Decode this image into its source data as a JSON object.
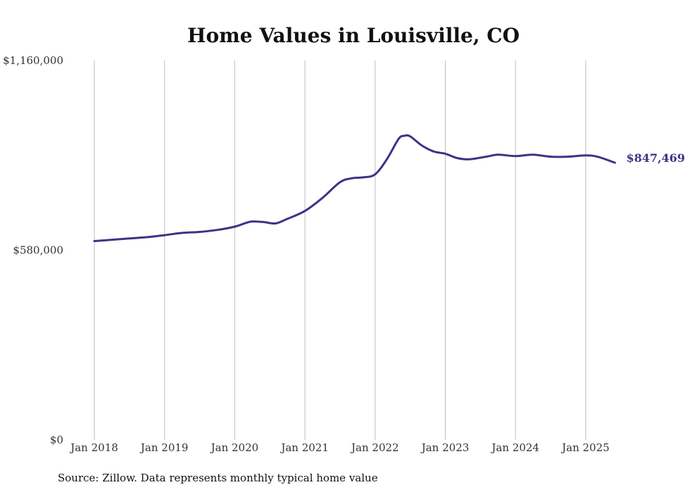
{
  "chart_data": {
    "type": "line",
    "title": "Home Values in Louisville, CO",
    "xlabel": "",
    "ylabel": "",
    "ylim": [
      0,
      1160000
    ],
    "xlim": [
      "2018-01",
      "2025-06"
    ],
    "y_ticks": [
      "$0",
      "$580,000",
      "$1,160,000"
    ],
    "y_tick_values": [
      0,
      580000,
      1160000
    ],
    "x_ticks": [
      "Jan 2018",
      "Jan 2019",
      "Jan 2020",
      "Jan 2021",
      "Jan 2022",
      "Jan 2023",
      "Jan 2024",
      "Jan 2025"
    ],
    "x_tick_values": [
      "2018-01",
      "2019-01",
      "2020-01",
      "2021-01",
      "2022-01",
      "2023-01",
      "2024-01",
      "2025-01"
    ],
    "grid": "vertical",
    "line_color": "#3b3486",
    "end_label": "$847,469",
    "source": "Source: Zillow. Data represents monthly typical home value",
    "series": [
      {
        "x": [
          "2018-01",
          "2018-04",
          "2018-07",
          "2018-10",
          "2019-01",
          "2019-04",
          "2019-07",
          "2019-10",
          "2020-01",
          "2020-03",
          "2020-04",
          "2020-06",
          "2020-08",
          "2020-10",
          "2021-01",
          "2021-04",
          "2021-07",
          "2021-09",
          "2021-11",
          "2022-01",
          "2022-03",
          "2022-05",
          "2022-06",
          "2022-07",
          "2022-09",
          "2022-11",
          "2023-01",
          "2023-03",
          "2023-05",
          "2023-08",
          "2023-10",
          "2024-01",
          "2024-04",
          "2024-07",
          "2024-10",
          "2025-01",
          "2025-03",
          "2025-06"
        ],
        "values": [
          608000,
          612000,
          616000,
          620000,
          626000,
          633000,
          636000,
          642000,
          652000,
          664000,
          668000,
          666000,
          662000,
          676000,
          700000,
          740000,
          788000,
          800000,
          803000,
          812000,
          858000,
          920000,
          930000,
          928000,
          900000,
          882000,
          875000,
          862000,
          858000,
          866000,
          872000,
          868000,
          872000,
          866000,
          866000,
          870000,
          866000,
          847469
        ]
      }
    ]
  }
}
